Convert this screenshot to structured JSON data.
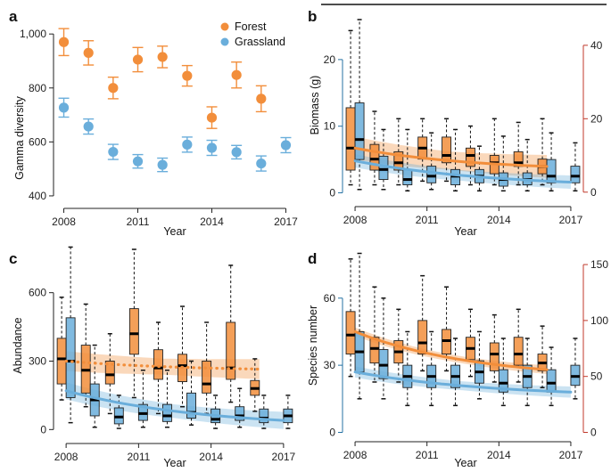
{
  "colors": {
    "forest": "#F28E3B",
    "grassland": "#6AAEDB",
    "forest_axis": "#C0392B",
    "grassland_axis": "#2471A3"
  },
  "chart_data": [
    {
      "panel": "a",
      "type": "scatter",
      "xlabel": "Year",
      "ylabel": "Gamma diversity",
      "xlim": [
        2007.8,
        2017.2
      ],
      "ylim": [
        380,
        1060
      ],
      "xticks": [
        "2008",
        "2011",
        "2014",
        "2017"
      ],
      "yticks": [
        "400",
        "600",
        "800",
        "1,000"
      ],
      "legend": {
        "position": "top-right",
        "entries": [
          "Forest",
          "Grassland"
        ]
      },
      "series": [
        {
          "name": "Forest",
          "x": [
            2008,
            2009,
            2010,
            2011,
            2012,
            2013,
            2014,
            2015,
            2016
          ],
          "y": [
            970,
            930,
            800,
            905,
            915,
            845,
            690,
            848,
            760
          ],
          "err": [
            50,
            45,
            40,
            45,
            40,
            38,
            40,
            48,
            48
          ]
        },
        {
          "name": "Grassland",
          "x": [
            2008,
            2009,
            2010,
            2011,
            2012,
            2013,
            2014,
            2015,
            2016,
            2017
          ],
          "y": [
            727,
            657,
            563,
            528,
            515,
            590,
            578,
            562,
            520,
            588
          ],
          "err": [
            35,
            28,
            28,
            25,
            25,
            28,
            28,
            25,
            28,
            28
          ]
        }
      ]
    },
    {
      "panel": "b",
      "type": "box",
      "xlabel": "Year",
      "ylabel": "Biomass (g)",
      "xlim": [
        2007.7,
        2017.3
      ],
      "ylim_left": [
        -1,
        26
      ],
      "ylim_right": [
        -2,
        47
      ],
      "xticks": [
        "2008",
        "2011",
        "2014",
        "2017"
      ],
      "yticks_left": [
        "0",
        "10",
        "20"
      ],
      "yticks_right": [
        "0",
        "20",
        "40"
      ],
      "series": [
        {
          "name": "Forest",
          "axis": "right",
          "x": [
            2008,
            2009,
            2010,
            2011,
            2012,
            2013,
            2014,
            2015,
            2016
          ],
          "stats": [
            {
              "lo": 2,
              "q1": 6,
              "med": 12,
              "q3": 23,
              "hi": 44
            },
            {
              "lo": 2,
              "q1": 6,
              "med": 9,
              "q3": 13,
              "hi": 22
            },
            {
              "lo": 2,
              "q1": 6,
              "med": 8,
              "q3": 11,
              "hi": 20
            },
            {
              "lo": 3,
              "q1": 9,
              "med": 12,
              "q3": 15,
              "hi": 20
            },
            {
              "lo": 3,
              "q1": 8,
              "med": 10,
              "q3": 15,
              "hi": 20
            },
            {
              "lo": 2,
              "q1": 7,
              "med": 10,
              "q3": 12,
              "hi": 18
            },
            {
              "lo": 2,
              "q1": 5,
              "med": 8,
              "q3": 10,
              "hi": 20
            },
            {
              "lo": 2,
              "q1": 7,
              "med": 8,
              "q3": 11,
              "hi": 19
            },
            {
              "lo": 2,
              "q1": 5,
              "med": 7,
              "q3": 9,
              "hi": 20
            }
          ],
          "trend": {
            "start": 12,
            "end": 7,
            "band": 2.5,
            "style": "solid"
          }
        },
        {
          "name": "Grassland",
          "axis": "left",
          "x": [
            2008,
            2009,
            2010,
            2011,
            2012,
            2013,
            2014,
            2015,
            2016,
            2017
          ],
          "stats": [
            {
              "lo": 0.5,
              "q1": 5,
              "med": 8,
              "q3": 13.5,
              "hi": 26
            },
            {
              "lo": 0.5,
              "q1": 2,
              "med": 3.5,
              "q3": 5.5,
              "hi": 9.5
            },
            {
              "lo": 0.3,
              "q1": 1.2,
              "med": 2,
              "q3": 3.5,
              "hi": 9.5
            },
            {
              "lo": 0.5,
              "q1": 1.5,
              "med": 2.5,
              "q3": 4,
              "hi": 9
            },
            {
              "lo": 0.3,
              "q1": 1.2,
              "med": 2.5,
              "q3": 3.5,
              "hi": 9.5
            },
            {
              "lo": 0.3,
              "q1": 1.5,
              "med": 2.5,
              "q3": 3.5,
              "hi": 7
            },
            {
              "lo": 0.3,
              "q1": 1,
              "med": 2,
              "q3": 3,
              "hi": 8.5
            },
            {
              "lo": 0.3,
              "q1": 1.2,
              "med": 2,
              "q3": 3,
              "hi": 8
            },
            {
              "lo": 0.3,
              "q1": 1.5,
              "med": 2.5,
              "q3": 5,
              "hi": 9
            },
            {
              "lo": 0.3,
              "q1": 1.5,
              "med": 2.5,
              "q3": 4,
              "hi": 7.5
            }
          ],
          "trend": {
            "start": 4.8,
            "end": 1.6,
            "band": 0.8,
            "style": "solid"
          }
        }
      ]
    },
    {
      "panel": "c",
      "type": "box",
      "xlabel": "Year",
      "ylabel": "Abundance",
      "xlim": [
        2007.7,
        2017.3
      ],
      "ylim_left": [
        -30,
        790
      ],
      "xticks": [
        "2008",
        "2011",
        "2014",
        "2017"
      ],
      "yticks_left": [
        "0",
        "300",
        "600"
      ],
      "series": [
        {
          "name": "Forest",
          "axis": "left",
          "x": [
            2008,
            2009,
            2010,
            2011,
            2012,
            2013,
            2014,
            2015,
            2016
          ],
          "stats": [
            {
              "lo": 130,
              "q1": 200,
              "med": 310,
              "q3": 400,
              "hi": 580
            },
            {
              "lo": 100,
              "q1": 160,
              "med": 260,
              "q3": 370,
              "hi": 550
            },
            {
              "lo": 70,
              "q1": 200,
              "med": 240,
              "q3": 300,
              "hi": 420
            },
            {
              "lo": 140,
              "q1": 330,
              "med": 420,
              "q3": 530,
              "hi": 790
            },
            {
              "lo": 70,
              "q1": 220,
              "med": 270,
              "q3": 350,
              "hi": 470
            },
            {
              "lo": 100,
              "q1": 210,
              "med": 280,
              "q3": 330,
              "hi": 540
            },
            {
              "lo": 70,
              "q1": 160,
              "med": 200,
              "q3": 300,
              "hi": 470
            },
            {
              "lo": 120,
              "q1": 220,
              "med": 270,
              "q3": 470,
              "hi": 720
            },
            {
              "lo": 80,
              "q1": 150,
              "med": 180,
              "q3": 215,
              "hi": 310
            }
          ],
          "trend": {
            "start": 300,
            "end": 265,
            "band": 35,
            "style": "dotted"
          }
        },
        {
          "name": "Grassland",
          "axis": "left",
          "x": [
            2008,
            2009,
            2010,
            2011,
            2012,
            2013,
            2014,
            2015,
            2016,
            2017
          ],
          "stats": [
            {
              "lo": 30,
              "q1": 140,
              "med": 300,
              "q3": 490,
              "hi": 800
            },
            {
              "lo": 10,
              "q1": 60,
              "med": 130,
              "q3": 200,
              "hi": 370
            },
            {
              "lo": 5,
              "q1": 25,
              "med": 55,
              "q3": 95,
              "hi": 150
            },
            {
              "lo": 10,
              "q1": 40,
              "med": 70,
              "q3": 110,
              "hi": 260
            },
            {
              "lo": 10,
              "q1": 35,
              "med": 60,
              "q3": 110,
              "hi": 260
            },
            {
              "lo": 20,
              "q1": 50,
              "med": 75,
              "q3": 160,
              "hi": 300
            },
            {
              "lo": 5,
              "q1": 30,
              "med": 45,
              "q3": 90,
              "hi": 150
            },
            {
              "lo": 10,
              "q1": 40,
              "med": 60,
              "q3": 100,
              "hi": 180
            },
            {
              "lo": 5,
              "q1": 30,
              "med": 50,
              "q3": 90,
              "hi": 150
            },
            {
              "lo": 5,
              "q1": 30,
              "med": 60,
              "q3": 90,
              "hi": 150
            }
          ],
          "trend": {
            "start": 170,
            "end": 40,
            "band": 30,
            "style": "solid"
          }
        }
      ]
    },
    {
      "panel": "d",
      "type": "box",
      "xlabel": "Year",
      "ylabel": "Species number",
      "xlim": [
        2007.7,
        2017.3
      ],
      "ylim_left": [
        -1,
        81
      ],
      "ylim_right": [
        -2,
        162
      ],
      "xticks": [
        "2008",
        "2011",
        "2014",
        "2017"
      ],
      "yticks_left": [
        "0",
        "30",
        "60"
      ],
      "yticks_right": [
        "0",
        "50",
        "100",
        "150"
      ],
      "series": [
        {
          "name": "Forest",
          "axis": "right",
          "x": [
            2008,
            2009,
            2010,
            2011,
            2012,
            2013,
            2014,
            2015,
            2016
          ],
          "stats": [
            {
              "lo": 50,
              "q1": 70,
              "med": 87,
              "q3": 108,
              "hi": 155
            },
            {
              "lo": 45,
              "q1": 62,
              "med": 75,
              "q3": 85,
              "hi": 130
            },
            {
              "lo": 45,
              "q1": 62,
              "med": 72,
              "q3": 82,
              "hi": 110
            },
            {
              "lo": 55,
              "q1": 70,
              "med": 80,
              "q3": 100,
              "hi": 140
            },
            {
              "lo": 55,
              "q1": 70,
              "med": 82,
              "q3": 92,
              "hi": 130
            },
            {
              "lo": 50,
              "q1": 65,
              "med": 75,
              "q3": 85,
              "hi": 110
            },
            {
              "lo": 45,
              "q1": 55,
              "med": 70,
              "q3": 80,
              "hi": 105
            },
            {
              "lo": 45,
              "q1": 60,
              "med": 70,
              "q3": 85,
              "hi": 110
            },
            {
              "lo": 40,
              "q1": 55,
              "med": 62,
              "q3": 70,
              "hi": 95
            }
          ],
          "trend": {
            "start": 90,
            "end": 56,
            "band": 3,
            "style": "solid"
          }
        },
        {
          "name": "Grassland",
          "axis": "left",
          "x": [
            2008,
            2009,
            2010,
            2011,
            2012,
            2013,
            2014,
            2015,
            2016,
            2017
          ],
          "stats": [
            {
              "lo": 15,
              "q1": 27,
              "med": 36,
              "q3": 45,
              "hi": 80
            },
            {
              "lo": 15,
              "q1": 24,
              "med": 30,
              "q3": 37,
              "hi": 60
            },
            {
              "lo": 12,
              "q1": 20,
              "med": 25,
              "q3": 30,
              "hi": 45
            },
            {
              "lo": 12,
              "q1": 20,
              "med": 25,
              "q3": 30,
              "hi": 45
            },
            {
              "lo": 12,
              "q1": 20,
              "med": 25,
              "q3": 30,
              "hi": 42
            },
            {
              "lo": 15,
              "q1": 22,
              "med": 27,
              "q3": 32,
              "hi": 45
            },
            {
              "lo": 12,
              "q1": 18,
              "med": 22,
              "q3": 28,
              "hi": 42
            },
            {
              "lo": 12,
              "q1": 20,
              "med": 25,
              "q3": 30,
              "hi": 42
            },
            {
              "lo": 12,
              "q1": 18,
              "med": 22,
              "q3": 28,
              "hi": 38
            },
            {
              "lo": 15,
              "q1": 21,
              "med": 25,
              "q3": 30,
              "hi": 42
            }
          ],
          "trend": {
            "start": 27,
            "end": 18,
            "band": 2,
            "style": "solid"
          }
        }
      ]
    }
  ]
}
